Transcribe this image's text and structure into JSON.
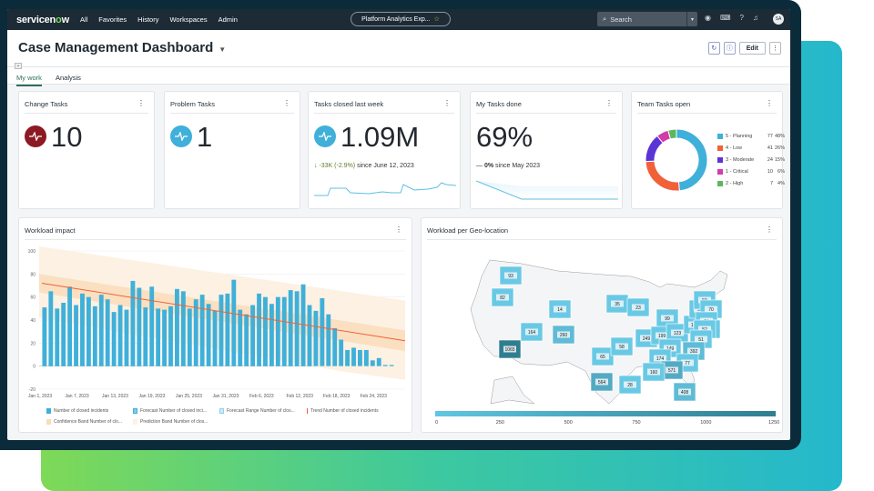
{
  "nav": {
    "logo_a": "servicen",
    "logo_o": "o",
    "logo_b": "w",
    "items": [
      "All",
      "Favorites",
      "History",
      "Workspaces",
      "Admin"
    ],
    "workspace_pill": "Platform Analytics Exp...",
    "search_placeholder": "Search",
    "avatar": "SA",
    "icons": [
      "globe-icon",
      "chat-icon",
      "help-icon",
      "bell-icon"
    ]
  },
  "header": {
    "title": "Case Management Dashboard",
    "edit_label": "Edit"
  },
  "tabs": [
    {
      "label": "My work",
      "active": true
    },
    {
      "label": "Analysis",
      "active": false
    }
  ],
  "cards": {
    "change_tasks": {
      "title": "Change Tasks",
      "value": "10",
      "color": "#8b1a22"
    },
    "problem_tasks": {
      "title": "Problem Tasks",
      "value": "1",
      "color": "#3fb0d9"
    },
    "tasks_closed": {
      "title": "Tasks closed last week",
      "value": "1.09M",
      "change": "-33K (-2.9%)",
      "since": "since June 12, 2023",
      "color": "#3fb0d9"
    },
    "my_tasks": {
      "title": "My Tasks done",
      "value": "69%",
      "change": "0%",
      "since": "since May 2023"
    },
    "team_tasks": {
      "title": "Team Tasks open",
      "slices": [
        {
          "label": "5 - Planning",
          "count": "77",
          "pct": "48%",
          "value": 77,
          "color": "#3fb0d9"
        },
        {
          "label": "4 - Low",
          "count": "41",
          "pct": "26%",
          "value": 41,
          "color": "#f0613a"
        },
        {
          "label": "3 - Moderate",
          "count": "24",
          "pct": "15%",
          "value": 24,
          "color": "#5b34d6"
        },
        {
          "label": "1 - Critical",
          "count": "10",
          "pct": "6%",
          "value": 10,
          "color": "#d33ba8"
        },
        {
          "label": "2 - High",
          "count": "7",
          "pct": "4%",
          "value": 7,
          "color": "#5cb85c"
        }
      ]
    }
  },
  "workload": {
    "title": "Workload impact",
    "yticks": [
      "100",
      "80",
      "60",
      "40",
      "20",
      "0",
      "-20"
    ],
    "xticks": [
      "Jan 1, 2023",
      "Jan 7, 2023",
      "Jan 13, 2023",
      "Jan 19, 2023",
      "Jan 25, 2023",
      "Jan 31, 2023",
      "Feb 6, 2023",
      "Feb 12, 2023",
      "Feb 18, 2023",
      "Feb 24, 2023"
    ],
    "legend": [
      "Number of closed incidents",
      "Forecast Number of closed inci...",
      "Forecast Range Number of clos...",
      "Trend Number of closed incidents",
      "Confidence Band Number of clo...",
      "Prediction Band Number of clos..."
    ]
  },
  "chart_data": {
    "type": "bar",
    "ylim": [
      -20,
      100
    ],
    "values": [
      51,
      65,
      50,
      55,
      69,
      53,
      63,
      60,
      52,
      62,
      58,
      47,
      53,
      49,
      74,
      68,
      51,
      69,
      50,
      49,
      52,
      67,
      65,
      50,
      58,
      62,
      54,
      48,
      62,
      63,
      75,
      49,
      45,
      53,
      63,
      60,
      54,
      60,
      60,
      66,
      65,
      71,
      53,
      48,
      59,
      45,
      33,
      23,
      14,
      16,
      14,
      14,
      5,
      7,
      1,
      1
    ],
    "trend": [
      72,
      22
    ],
    "bar_color": "#3fb0d9",
    "trend_color": "#f0613a"
  },
  "geo": {
    "title": "Workload per Geo-location",
    "scale": [
      "0",
      "250",
      "500",
      "750",
      "1000",
      "1250"
    ],
    "values": [
      "93",
      "82",
      "1065",
      "14",
      "164",
      "260",
      "35",
      "23",
      "99",
      "249",
      "199",
      "123",
      "130",
      "57",
      "59",
      "70",
      "24",
      "38",
      "52",
      "51",
      "149",
      "174",
      "392",
      "77",
      "571",
      "160",
      "408",
      "564",
      "65",
      "28",
      "58"
    ]
  }
}
